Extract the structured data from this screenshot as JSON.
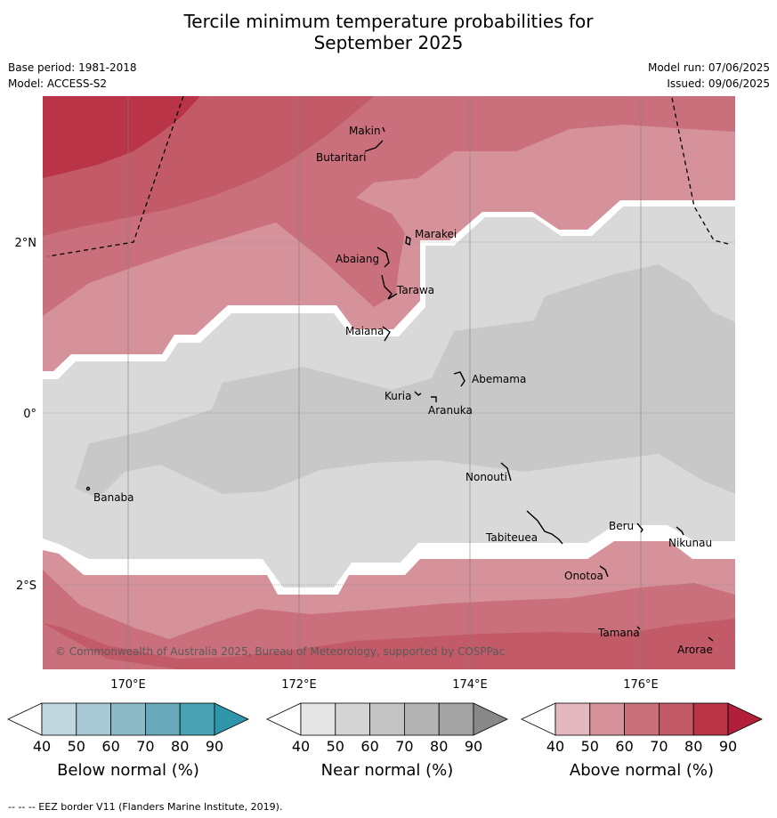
{
  "title_line1": "Tercile minimum temperature probabilities for",
  "title_line2": "September 2025",
  "meta": {
    "base_period": "Base period: 1981-2018",
    "model": "Model: ACCESS-S2",
    "model_run": "Model run: 07/06/2025",
    "issued": "Issued: 09/06/2025"
  },
  "map": {
    "copyright": "© Commonwealth of Australia 2025, Bureau of Meteorology, supported by COSPPac",
    "lon_labels": [
      "170°E",
      "172°E",
      "174°E",
      "176°E"
    ],
    "lat_labels": [
      "2°N",
      "0°",
      "2°S"
    ],
    "places": [
      "Makin",
      "Butaritari",
      "Marakei",
      "Abaiang",
      "Tarawa",
      "Maiana",
      "Abemama",
      "Kuria",
      "Aranuka",
      "Banaba",
      "Nonouti",
      "Beru",
      "Tabiteuea",
      "Nikunau",
      "Onotoa",
      "Tamana",
      "Arorae"
    ]
  },
  "colorbars": [
    {
      "title": "Below normal (%)",
      "ticks": [
        "40",
        "50",
        "60",
        "70",
        "80",
        "90"
      ],
      "colors": [
        "#bfd6de",
        "#a6c9d3",
        "#8bb9c6",
        "#6aa9b9",
        "#4aa3b4",
        "#2f96aa"
      ]
    },
    {
      "title": "Near normal (%)",
      "ticks": [
        "40",
        "50",
        "60",
        "70",
        "80",
        "90"
      ],
      "colors": [
        "#e6e6e6",
        "#d4d4d4",
        "#c4c4c4",
        "#b3b3b3",
        "#a3a3a3",
        "#888888"
      ]
    },
    {
      "title": "Above normal (%)",
      "ticks": [
        "40",
        "50",
        "60",
        "70",
        "80",
        "90"
      ],
      "colors": [
        "#e3b7be",
        "#d6929b",
        "#c9707c",
        "#c25a68",
        "#b93447",
        "#b11f3a"
      ]
    }
  ],
  "footer": "--  --  -- EEZ border V11 (Flanders Marine Institute, 2019)."
}
